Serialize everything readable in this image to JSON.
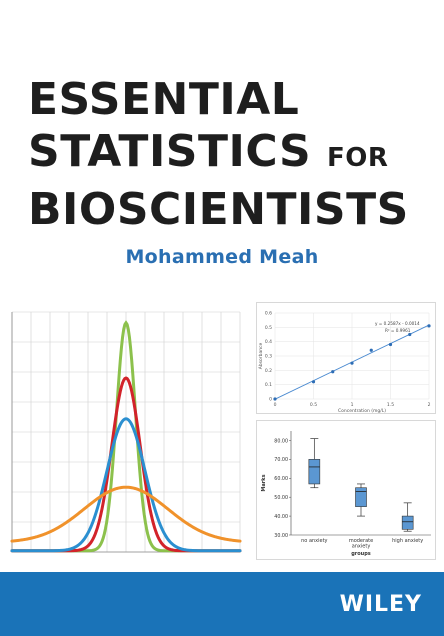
{
  "cover": {
    "title_line1": "ESSENTIAL",
    "title_line2": "STATISTICS",
    "title_connector": "FOR",
    "title_line3": "BIOSCIENTISTS",
    "author": "Mohammed Meah",
    "publisher": "WILEY"
  },
  "colors": {
    "footer_blue": "#1a73b8",
    "author_blue": "#2a6fb2",
    "curve_green": "#8cc14c",
    "curve_red": "#d2232a",
    "curve_blue": "#2b8fd0",
    "curve_orange": "#f0922b"
  },
  "chart_data": [
    {
      "type": "line",
      "description_key": "normal-curves",
      "x": [
        -6,
        -5,
        -4,
        -3,
        -2,
        -1,
        0,
        1,
        2,
        3,
        4,
        5,
        6
      ],
      "ylim": [
        0,
        1
      ],
      "grid": true,
      "series": [
        {
          "color": "green",
          "sigma": 0.5,
          "peak": 0.95
        },
        {
          "color": "red",
          "sigma": 0.75,
          "peak": 0.72
        },
        {
          "color": "blue",
          "sigma": 1.0,
          "peak": 0.55
        },
        {
          "color": "orange",
          "sigma": 2.2,
          "peak": 0.23
        }
      ]
    },
    {
      "type": "scatter",
      "x": [
        0,
        0.5,
        0.75,
        1.0,
        1.25,
        1.5,
        1.75,
        2.0
      ],
      "y": [
        0,
        0.12,
        0.19,
        0.25,
        0.34,
        0.38,
        0.45,
        0.51
      ],
      "xlim": [
        0,
        2
      ],
      "ylim": [
        0,
        0.6
      ],
      "x_ticks": [
        "0",
        "0.5",
        "1",
        "1.5",
        "2"
      ],
      "y_ticks": [
        "0",
        "0.1",
        "0.2",
        "0.3",
        "0.4",
        "0.5",
        "0.6"
      ],
      "xlabel": "Concentration (mg/L)",
      "ylabel": "Absorbance",
      "equation": "y = 0.2587x - 0.0014",
      "r_squared": "R² = 0.9961",
      "trendline": true
    },
    {
      "type": "box",
      "categories": [
        "no anxiety",
        "moderate anxiety",
        "high anxiety"
      ],
      "ylim": [
        30,
        85
      ],
      "y_ticks": [
        "30.00",
        "40.00",
        "50.00",
        "60.00",
        "70.00",
        "80.00"
      ],
      "xlabel": "groups",
      "ylabel": "Marks",
      "boxes": [
        {
          "min": 55,
          "q1": 57,
          "median": 66,
          "q3": 70,
          "max": 81
        },
        {
          "min": 40,
          "q1": 45,
          "median": 53,
          "q3": 55,
          "max": 57
        },
        {
          "min": 32,
          "q1": 33,
          "median": 37,
          "q3": 40,
          "max": 47
        }
      ]
    }
  ]
}
